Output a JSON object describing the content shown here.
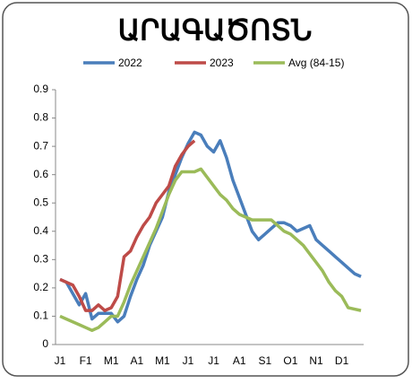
{
  "chart_data": {
    "type": "line",
    "title": "ԱՐԱԳԱԾՈՏՆ",
    "categories": [
      "J1",
      null,
      null,
      null,
      "F1",
      null,
      null,
      null,
      "M1",
      null,
      null,
      null,
      "A1",
      null,
      null,
      null,
      "M1",
      null,
      null,
      null,
      "J1",
      null,
      null,
      null,
      "J1",
      null,
      null,
      null,
      "A1",
      null,
      null,
      null,
      "S1",
      null,
      null,
      null,
      "O1",
      null,
      null,
      null,
      "N1",
      null,
      null,
      null,
      "D1",
      null,
      null,
      null
    ],
    "series": [
      {
        "name": "2022",
        "color": "#4a7ebb",
        "values": [
          0.23,
          0.22,
          0.18,
          0.14,
          0.18,
          0.09,
          0.11,
          0.11,
          0.11,
          0.08,
          0.1,
          0.17,
          0.23,
          0.28,
          0.35,
          0.4,
          0.45,
          0.54,
          0.6,
          0.66,
          0.71,
          0.75,
          0.74,
          0.7,
          0.68,
          0.72,
          0.66,
          0.58,
          0.52,
          0.46,
          0.4,
          0.37,
          0.39,
          0.41,
          0.43,
          0.43,
          0.42,
          0.4,
          0.41,
          0.42,
          0.37,
          0.35,
          0.33,
          0.31,
          0.29,
          0.27,
          0.25,
          0.24
        ]
      },
      {
        "name": "2023",
        "color": "#be4b48",
        "values": [
          0.23,
          0.22,
          0.21,
          0.17,
          0.12,
          0.12,
          0.14,
          0.12,
          0.13,
          0.17,
          0.31,
          0.33,
          0.38,
          0.42,
          0.45,
          0.5,
          0.53,
          0.56,
          0.63,
          0.67,
          0.7,
          0.72,
          null,
          null,
          null,
          null,
          null,
          null,
          null,
          null,
          null,
          null,
          null,
          null,
          null,
          null,
          null,
          null,
          null,
          null,
          null,
          null,
          null,
          null,
          null,
          null,
          null,
          null
        ]
      },
      {
        "name": "Avg (84-15)",
        "color": "#9bbb59",
        "values": [
          0.1,
          0.09,
          0.08,
          0.07,
          0.06,
          0.05,
          0.06,
          0.08,
          0.1,
          0.1,
          0.15,
          0.21,
          0.26,
          0.31,
          0.36,
          0.41,
          0.47,
          0.53,
          0.58,
          0.61,
          0.61,
          0.61,
          0.62,
          0.59,
          0.56,
          0.53,
          0.51,
          0.48,
          0.46,
          0.45,
          0.44,
          0.44,
          0.44,
          0.44,
          0.42,
          0.4,
          0.39,
          0.37,
          0.35,
          0.32,
          0.29,
          0.26,
          0.22,
          0.19,
          0.17,
          0.13,
          0.125,
          0.12
        ]
      }
    ],
    "ylim": [
      0,
      0.9
    ],
    "yticks": [
      0,
      0.1,
      0.2,
      0.3,
      0.4,
      0.5,
      0.6,
      0.7,
      0.8,
      0.9
    ],
    "grid": false
  }
}
